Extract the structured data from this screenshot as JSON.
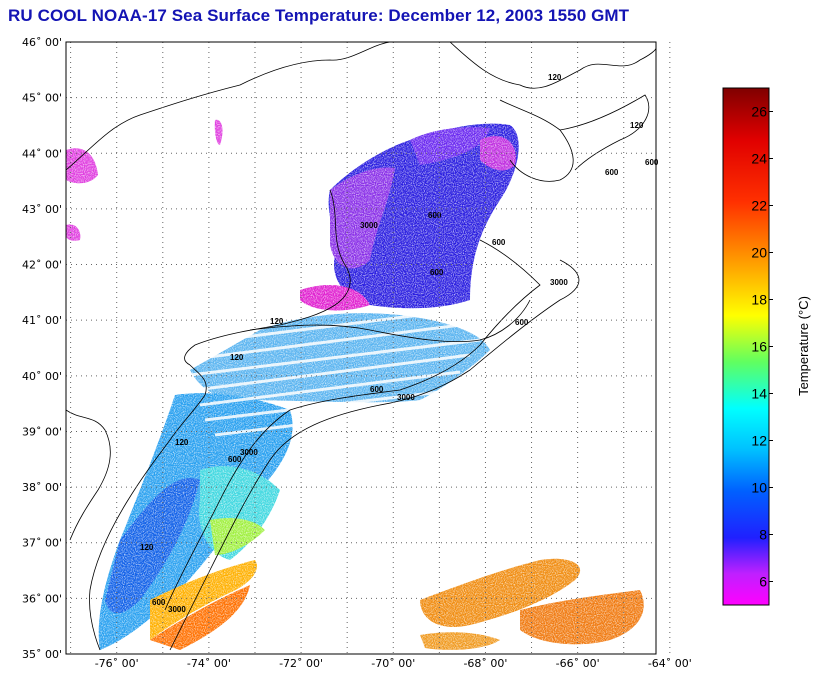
{
  "title": "RU COOL  NOAA-17  Sea Surface Temperature:  December 12, 2003 1550 GMT",
  "map": {
    "lat_labels": [
      "46˚ 00'",
      "45˚ 00'",
      "44˚ 00'",
      "43˚ 00'",
      "42˚ 00'",
      "41˚ 00'",
      "40˚ 00'",
      "39˚ 00'",
      "38˚ 00'",
      "37˚ 00'",
      "36˚ 00'",
      "35˚ 00'"
    ],
    "lon_labels": [
      "-76˚ 00'",
      "-74˚ 00'",
      "-72˚ 00'",
      "-70˚ 00'",
      "-68˚ 00'",
      "-66˚ 00'",
      "-64˚ 00'"
    ],
    "lat_range": [
      35,
      46
    ],
    "lon_range": [
      -77.1,
      -64.3
    ],
    "gridlines": "dotted",
    "contour_labels": [
      "120",
      "120",
      "600",
      "600",
      "600",
      "600",
      "3000",
      "120",
      "600",
      "3000",
      "120",
      "600",
      "3000",
      "120",
      "600",
      "3000",
      "120",
      "600",
      "3000",
      "600"
    ]
  },
  "colorbar": {
    "title": "Temperature (°C)",
    "ticks": [
      "26",
      "24",
      "22",
      "20",
      "18",
      "16",
      "14",
      "12",
      "10",
      "8",
      "6"
    ],
    "range": [
      5,
      27
    ],
    "tick_values": [
      26,
      24,
      22,
      20,
      18,
      16,
      14,
      12,
      10,
      8,
      6
    ],
    "colors": [
      "#ff00ff",
      "#a040ff",
      "#0000ff",
      "#00a0ff",
      "#00ffff",
      "#60ff60",
      "#ffff00",
      "#ffa000",
      "#ff4000",
      "#ff0000",
      "#900000"
    ]
  }
}
